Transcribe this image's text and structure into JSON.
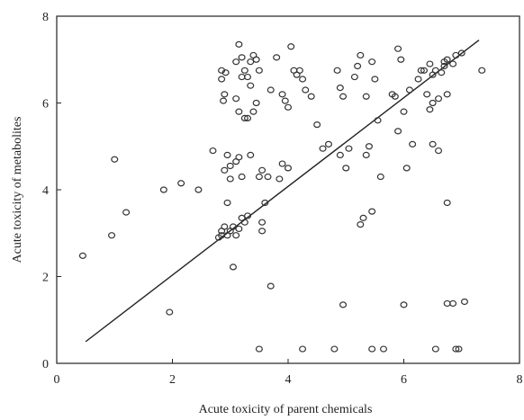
{
  "chart_data": {
    "type": "scatter",
    "title": "",
    "xlabel": "Acute toxicity of parent chemicals",
    "ylabel": "Acute toxicity of metabolites",
    "xlim": [
      0,
      8
    ],
    "ylim": [
      0,
      8
    ],
    "xticks": [
      "0",
      "2",
      "4",
      "6",
      "8"
    ],
    "yticks": [
      "0",
      "2",
      "4",
      "6",
      "8"
    ],
    "grid": false,
    "legend": "none",
    "trendline": {
      "x": [
        0.5,
        7.3
      ],
      "y": [
        0.5,
        7.45
      ]
    },
    "series": [
      {
        "points": [
          [
            0.45,
            2.48
          ],
          [
            0.95,
            2.95
          ],
          [
            1.0,
            4.7
          ],
          [
            1.2,
            3.48
          ],
          [
            1.85,
            4.0
          ],
          [
            1.95,
            1.18
          ],
          [
            2.15,
            4.15
          ],
          [
            2.45,
            4.0
          ],
          [
            2.85,
            6.75
          ],
          [
            2.85,
            6.55
          ],
          [
            2.9,
            6.2
          ],
          [
            2.88,
            6.05
          ],
          [
            2.92,
            6.7
          ],
          [
            2.9,
            4.45
          ],
          [
            2.95,
            4.8
          ],
          [
            3.0,
            4.55
          ],
          [
            2.7,
            4.9
          ],
          [
            2.95,
            3.7
          ],
          [
            2.9,
            3.15
          ],
          [
            2.85,
            3.05
          ],
          [
            2.8,
            2.9
          ],
          [
            2.95,
            2.95
          ],
          [
            3.0,
            3.05
          ],
          [
            3.05,
            3.15
          ],
          [
            3.1,
            2.95
          ],
          [
            3.15,
            3.1
          ],
          [
            3.2,
            3.35
          ],
          [
            3.25,
            3.25
          ],
          [
            3.3,
            3.4
          ],
          [
            3.05,
            2.22
          ],
          [
            3.0,
            4.25
          ],
          [
            3.1,
            4.65
          ],
          [
            3.15,
            4.75
          ],
          [
            3.2,
            4.3
          ],
          [
            3.35,
            4.8
          ],
          [
            3.1,
            6.95
          ],
          [
            3.15,
            7.35
          ],
          [
            3.2,
            7.05
          ],
          [
            3.25,
            6.75
          ],
          [
            3.3,
            6.6
          ],
          [
            3.35,
            6.4
          ],
          [
            3.2,
            6.6
          ],
          [
            3.1,
            6.1
          ],
          [
            3.15,
            5.8
          ],
          [
            3.25,
            5.65
          ],
          [
            3.3,
            5.65
          ],
          [
            3.35,
            6.95
          ],
          [
            3.4,
            7.1
          ],
          [
            3.45,
            7.0
          ],
          [
            3.5,
            6.75
          ],
          [
            3.4,
            5.8
          ],
          [
            3.5,
            4.3
          ],
          [
            3.55,
            4.45
          ],
          [
            3.55,
            3.25
          ],
          [
            3.55,
            3.05
          ],
          [
            3.6,
            3.7
          ],
          [
            3.5,
            0.33
          ],
          [
            3.65,
            4.3
          ],
          [
            3.7,
            1.78
          ],
          [
            3.7,
            6.3
          ],
          [
            3.8,
            7.05
          ],
          [
            3.85,
            4.25
          ],
          [
            3.9,
            4.6
          ],
          [
            3.9,
            6.2
          ],
          [
            3.95,
            6.05
          ],
          [
            4.0,
            5.9
          ],
          [
            4.0,
            4.5
          ],
          [
            4.05,
            7.3
          ],
          [
            4.1,
            6.75
          ],
          [
            4.15,
            6.65
          ],
          [
            4.2,
            6.75
          ],
          [
            4.25,
            6.55
          ],
          [
            4.25,
            0.33
          ],
          [
            4.3,
            6.3
          ],
          [
            4.4,
            6.15
          ],
          [
            4.5,
            5.5
          ],
          [
            4.6,
            4.95
          ],
          [
            4.7,
            5.05
          ],
          [
            4.8,
            0.33
          ],
          [
            4.85,
            6.75
          ],
          [
            4.9,
            6.35
          ],
          [
            4.9,
            4.8
          ],
          [
            4.95,
            6.15
          ],
          [
            4.95,
            1.35
          ],
          [
            5.0,
            4.5
          ],
          [
            5.05,
            4.95
          ],
          [
            5.15,
            6.6
          ],
          [
            5.2,
            6.85
          ],
          [
            5.25,
            7.1
          ],
          [
            5.25,
            3.2
          ],
          [
            5.3,
            3.35
          ],
          [
            5.35,
            6.15
          ],
          [
            5.35,
            4.8
          ],
          [
            5.4,
            5.0
          ],
          [
            5.45,
            6.95
          ],
          [
            5.45,
            3.5
          ],
          [
            5.45,
            0.33
          ],
          [
            5.5,
            6.55
          ],
          [
            5.55,
            5.6
          ],
          [
            5.6,
            4.3
          ],
          [
            5.65,
            0.33
          ],
          [
            5.8,
            6.2
          ],
          [
            5.85,
            6.15
          ],
          [
            5.9,
            5.35
          ],
          [
            5.9,
            7.25
          ],
          [
            5.95,
            7.0
          ],
          [
            6.0,
            5.8
          ],
          [
            6.0,
            1.35
          ],
          [
            6.05,
            4.5
          ],
          [
            6.1,
            6.3
          ],
          [
            6.15,
            5.05
          ],
          [
            6.25,
            6.55
          ],
          [
            6.3,
            6.75
          ],
          [
            6.35,
            6.75
          ],
          [
            6.4,
            6.2
          ],
          [
            6.45,
            5.85
          ],
          [
            6.5,
            6.0
          ],
          [
            6.45,
            6.9
          ],
          [
            6.5,
            5.05
          ],
          [
            6.55,
            6.75
          ],
          [
            6.55,
            0.33
          ],
          [
            6.6,
            6.1
          ],
          [
            6.6,
            4.9
          ],
          [
            6.65,
            6.7
          ],
          [
            6.7,
            6.95
          ],
          [
            6.7,
            6.85
          ],
          [
            6.75,
            7.0
          ],
          [
            6.75,
            6.2
          ],
          [
            6.75,
            3.7
          ],
          [
            6.75,
            1.38
          ],
          [
            6.85,
            1.38
          ],
          [
            6.85,
            6.9
          ],
          [
            6.9,
            7.1
          ],
          [
            6.9,
            0.33
          ],
          [
            6.95,
            0.33
          ],
          [
            7.0,
            7.15
          ],
          [
            7.05,
            1.42
          ],
          [
            7.35,
            6.75
          ],
          [
            6.5,
            6.65
          ],
          [
            3.45,
            6.0
          ],
          [
            2.85,
            2.95
          ]
        ]
      }
    ]
  }
}
